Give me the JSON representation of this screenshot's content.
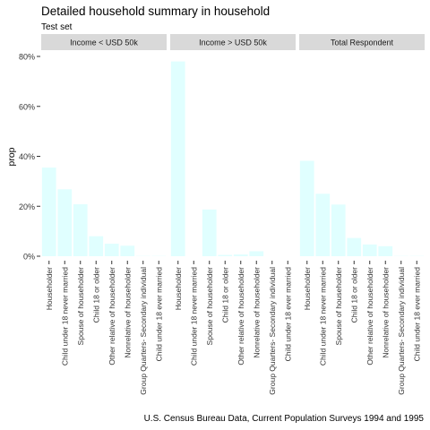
{
  "chart_data": {
    "type": "bar",
    "title": "Detailed household summary in household",
    "subtitle": "Test set",
    "caption": "U.S. Census Bureau Data, Current Population Surveys 1994 and 1995",
    "ylabel": "prop",
    "xlabel": "",
    "ylim": [
      0,
      0.8
    ],
    "yticks": [
      0,
      0.2,
      0.4,
      0.6,
      0.8
    ],
    "ytick_labels": [
      "0%",
      "20%",
      "40%",
      "60%",
      "80%"
    ],
    "grid": false,
    "legend": "none",
    "colors": {
      "bar_fill": "#e0ffff",
      "strip_fill": "#d9d9d9",
      "text": "#000000",
      "tick_text": "#333333"
    },
    "categories": [
      "Householder",
      "Child under 18 never married",
      "Spouse of householder",
      "Child 18 or older",
      "Other relative of householder",
      "Nonrelative of householder",
      "Group Quarters- Secondary individual",
      "Child under 18 ever married"
    ],
    "panels": [
      {
        "name": "Income < USD 50k",
        "values": [
          0.355,
          0.268,
          0.208,
          0.08,
          0.05,
          0.042,
          0.001,
          0.001
        ]
      },
      {
        "name": "Income > USD 50k",
        "values": [
          0.78,
          0.0,
          0.187,
          0.005,
          0.007,
          0.02,
          0.0,
          0.0
        ]
      },
      {
        "name": "Total Respondent",
        "values": [
          0.382,
          0.25,
          0.207,
          0.073,
          0.047,
          0.04,
          0.001,
          0.001
        ]
      }
    ]
  }
}
